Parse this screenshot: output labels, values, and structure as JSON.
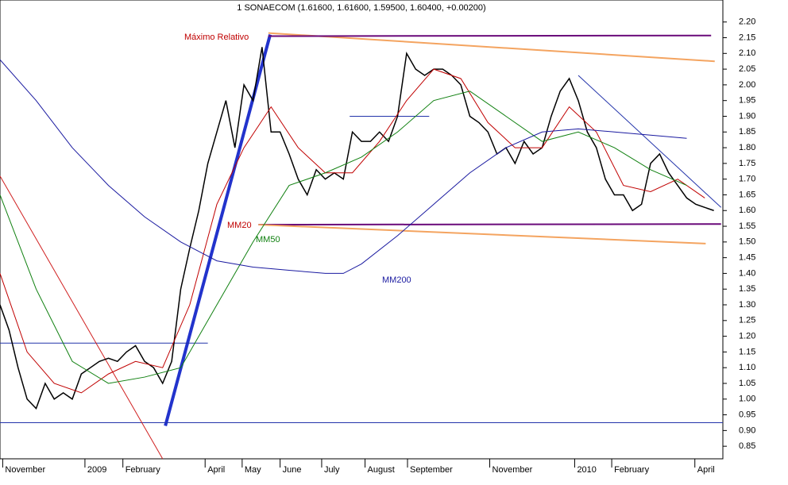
{
  "chart_data": {
    "type": "line",
    "title": "1 SONAECOM (1.61600, 1.61600, 1.59500, 1.60400, +0.00200)",
    "xlim": [
      0,
      80
    ],
    "ylim": [
      0.81,
      2.27
    ],
    "xticks": [
      {
        "value": 0.3,
        "label": "November"
      },
      {
        "value": 9.4,
        "label": "2009"
      },
      {
        "value": 13.6,
        "label": "February"
      },
      {
        "value": 22.7,
        "label": "April"
      },
      {
        "value": 26.8,
        "label": "May"
      },
      {
        "value": 31.0,
        "label": "June"
      },
      {
        "value": 35.6,
        "label": "July"
      },
      {
        "value": 40.4,
        "label": "August"
      },
      {
        "value": 45.1,
        "label": "September"
      },
      {
        "value": 54.2,
        "label": "November"
      },
      {
        "value": 63.6,
        "label": "2010"
      },
      {
        "value": 67.7,
        "label": "February"
      },
      {
        "value": 76.9,
        "label": "April"
      }
    ],
    "yticks": [
      0.85,
      {
        "value": 0.9,
        "label": "0.90"
      },
      0.95,
      {
        "value": 1.0,
        "label": "1.00"
      },
      1.05,
      {
        "value": 1.1,
        "label": "1.10"
      },
      1.15,
      {
        "value": 1.2,
        "label": "1.20"
      },
      1.25,
      {
        "value": 1.3,
        "label": "1.30"
      },
      1.35,
      {
        "value": 1.4,
        "label": "1.40"
      },
      1.45,
      {
        "value": 1.5,
        "label": "1.50"
      },
      1.55,
      {
        "value": 1.6,
        "label": "1.60"
      },
      1.65,
      {
        "value": 1.7,
        "label": "1.70"
      },
      1.75,
      {
        "value": 1.8,
        "label": "1.80"
      },
      1.85,
      {
        "value": 1.9,
        "label": "1.90"
      },
      1.95,
      {
        "value": 2.0,
        "label": "2.00"
      },
      2.05,
      {
        "value": 2.1,
        "label": "2.10"
      },
      2.15,
      {
        "value": 2.2,
        "label": "2.20"
      }
    ],
    "series": [
      {
        "color": "#000000",
        "width": 1.5,
        "x": [
          0,
          1,
          2,
          3,
          4,
          5,
          6,
          7,
          8,
          9,
          10,
          11,
          12,
          13,
          14,
          15,
          16,
          17,
          18,
          19,
          20,
          21,
          22,
          23,
          24,
          25,
          26,
          27,
          28,
          29,
          30,
          31,
          32,
          33,
          34,
          35,
          36,
          37,
          38,
          39,
          40,
          41,
          42,
          43,
          44,
          45,
          46,
          47,
          48,
          49,
          50,
          51,
          52,
          53,
          54,
          55,
          56,
          57,
          58,
          59,
          60,
          61,
          62,
          63,
          64,
          65,
          66,
          67,
          68,
          69,
          70,
          71,
          72,
          73,
          74,
          75,
          76,
          77,
          78,
          79
        ],
        "values": [
          1.3,
          1.22,
          1.1,
          1.0,
          0.97,
          1.05,
          1.0,
          1.02,
          1.0,
          1.08,
          1.1,
          1.12,
          1.13,
          1.12,
          1.15,
          1.17,
          1.12,
          1.1,
          1.05,
          1.12,
          1.35,
          1.48,
          1.6,
          1.75,
          1.85,
          1.95,
          1.8,
          2.0,
          1.95,
          2.12,
          1.85,
          1.85,
          1.78,
          1.7,
          1.65,
          1.73,
          1.7,
          1.72,
          1.7,
          1.85,
          1.82,
          1.82,
          1.85,
          1.82,
          1.9,
          2.1,
          2.05,
          2.03,
          2.05,
          2.05,
          2.03,
          2.0,
          1.9,
          1.88,
          1.85,
          1.78,
          1.8,
          1.75,
          1.82,
          1.78,
          1.8,
          1.9,
          1.98,
          2.02,
          1.95,
          1.85,
          1.8,
          1.7,
          1.65,
          1.65,
          1.6,
          1.62,
          1.75,
          1.78,
          1.72,
          1.68,
          1.64,
          1.62,
          1.61,
          1.6
        ]
      },
      {
        "color": "#c00000",
        "width": 1,
        "x": [
          0,
          3,
          6,
          9,
          12,
          15,
          18,
          21,
          24,
          27,
          30,
          33,
          36,
          39,
          42,
          45,
          48,
          51,
          54,
          57,
          60,
          63,
          66,
          69,
          72,
          75,
          78
        ],
        "values": [
          1.4,
          1.15,
          1.05,
          1.02,
          1.08,
          1.12,
          1.1,
          1.3,
          1.62,
          1.8,
          1.93,
          1.8,
          1.72,
          1.72,
          1.82,
          1.95,
          2.05,
          2.02,
          1.88,
          1.8,
          1.8,
          1.93,
          1.85,
          1.68,
          1.66,
          1.7,
          1.64
        ]
      },
      {
        "color": "#108010",
        "width": 1,
        "x": [
          0,
          4,
          8,
          12,
          16,
          20,
          24,
          28,
          32,
          36,
          40,
          44,
          48,
          52,
          56,
          60,
          64,
          68,
          72,
          76
        ],
        "values": [
          1.65,
          1.35,
          1.12,
          1.05,
          1.07,
          1.1,
          1.3,
          1.5,
          1.68,
          1.72,
          1.77,
          1.85,
          1.95,
          1.98,
          1.9,
          1.82,
          1.85,
          1.8,
          1.73,
          1.68
        ]
      },
      {
        "color": "#1a1aa0",
        "width": 1,
        "x": [
          0,
          4,
          8,
          12,
          16,
          20,
          24,
          28,
          32,
          36,
          38,
          40,
          44,
          48,
          52,
          56,
          60,
          64,
          68,
          72,
          76
        ],
        "values": [
          2.08,
          1.95,
          1.8,
          1.68,
          1.58,
          1.5,
          1.44,
          1.42,
          1.41,
          1.4,
          1.4,
          1.43,
          1.52,
          1.62,
          1.72,
          1.8,
          1.85,
          1.86,
          1.85,
          1.84,
          1.83
        ]
      }
    ],
    "trendlines": [
      {
        "color": "#2233cc",
        "width": 4,
        "x": [
          18.3,
          29.9
        ],
        "y": [
          0.915,
          2.16
        ]
      },
      {
        "color": "#f4a460",
        "width": 2,
        "x": [
          29.7,
          79.1
        ],
        "y": [
          2.165,
          2.075
        ]
      },
      {
        "color": "#6a0a7a",
        "width": 2,
        "x": [
          29.7,
          78.7
        ],
        "y": [
          2.155,
          2.157
        ]
      },
      {
        "color": "#6a0a7a",
        "width": 2,
        "x": [
          28.6,
          79.8
        ],
        "y": [
          1.555,
          1.557
        ]
      },
      {
        "color": "#f4a460",
        "width": 2,
        "x": [
          28.6,
          78.1
        ],
        "y": [
          1.555,
          1.495
        ]
      },
      {
        "color": "#2233aa",
        "width": 1,
        "x": [
          0,
          80
        ],
        "y": [
          0.925,
          0.925
        ]
      },
      {
        "color": "#2233aa",
        "width": 1,
        "x": [
          0,
          23
        ],
        "y": [
          1.178,
          1.178
        ]
      },
      {
        "color": "#d02020",
        "width": 1,
        "x": [
          0,
          18
        ],
        "y": [
          1.71,
          0.81
        ]
      },
      {
        "color": "#2233aa",
        "width": 1,
        "x": [
          64,
          79.8
        ],
        "y": [
          2.03,
          1.61
        ]
      },
      {
        "color": "#2233aa",
        "width": 1,
        "x": [
          38.7,
          47.5
        ],
        "y": [
          1.9,
          1.9
        ]
      }
    ],
    "annotations": [
      "Máximo Relativo",
      "MM20",
      "MM50",
      "MM200"
    ]
  }
}
